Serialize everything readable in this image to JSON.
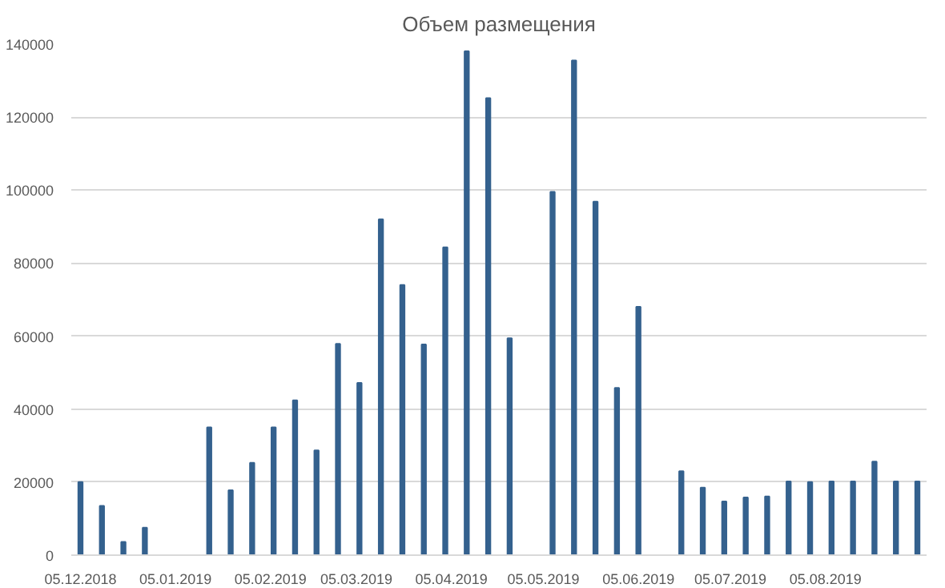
{
  "chart_data": {
    "type": "bar",
    "title": "Объем размещения",
    "x": [
      "2018-12-05",
      "2018-12-12",
      "2018-12-19",
      "2018-12-26",
      "2019-01-02",
      "2019-01-09",
      "2019-01-16",
      "2019-01-23",
      "2019-01-30",
      "2019-02-06",
      "2019-02-13",
      "2019-02-20",
      "2019-02-27",
      "2019-03-06",
      "2019-03-13",
      "2019-03-20",
      "2019-03-27",
      "2019-04-03",
      "2019-04-10",
      "2019-04-17",
      "2019-04-24",
      "2019-05-01",
      "2019-05-08",
      "2019-05-15",
      "2019-05-22",
      "2019-05-29",
      "2019-06-05",
      "2019-06-12",
      "2019-06-19",
      "2019-06-26",
      "2019-07-03",
      "2019-07-10",
      "2019-07-17",
      "2019-07-24",
      "2019-07-31",
      "2019-08-07",
      "2019-08-14",
      "2019-08-21",
      "2019-08-28",
      "2019-09-04"
    ],
    "values": [
      20000,
      13500,
      3600,
      7500,
      null,
      null,
      35000,
      17800,
      25300,
      35000,
      42400,
      28700,
      57900,
      47200,
      92000,
      74000,
      57700,
      84300,
      138000,
      125200,
      59400,
      null,
      99500,
      135500,
      96800,
      45800,
      68000,
      null,
      23000,
      18500,
      14700,
      15800,
      16100,
      20200,
      20000,
      20200,
      20200,
      25600,
      20200,
      20200
    ],
    "color": "#34618e",
    "xlim": [
      "2018-12-02",
      "2019-09-07"
    ],
    "xticks": [
      {
        "value": "2018-12-05",
        "label": "05.12.2018"
      },
      {
        "value": "2019-01-05",
        "label": "05.01.2019"
      },
      {
        "value": "2019-02-05",
        "label": "05.02.2019"
      },
      {
        "value": "2019-03-05",
        "label": "05.03.2019"
      },
      {
        "value": "2019-04-05",
        "label": "05.04.2019"
      },
      {
        "value": "2019-05-05",
        "label": "05.05.2019"
      },
      {
        "value": "2019-06-05",
        "label": "05.06.2019"
      },
      {
        "value": "2019-07-05",
        "label": "05.07.2019"
      },
      {
        "value": "2019-08-05",
        "label": "05.08.2019"
      }
    ],
    "ylim": [
      0,
      140000
    ],
    "yticks": [
      0,
      20000,
      40000,
      60000,
      80000,
      100000,
      120000,
      140000
    ],
    "grid": "y"
  }
}
